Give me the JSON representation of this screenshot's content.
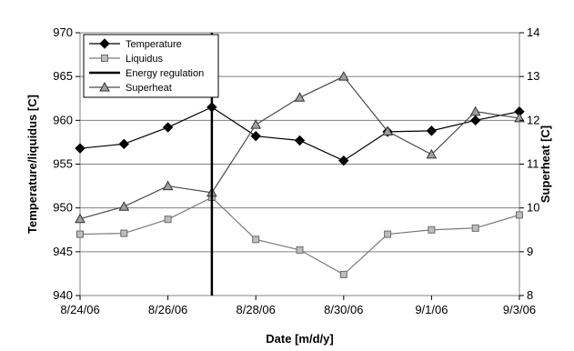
{
  "chart_data": {
    "type": "line",
    "x_dates": [
      "8/24/06",
      "8/25/06",
      "8/26/06",
      "8/27/06",
      "8/28/06",
      "8/29/06",
      "8/30/06",
      "8/31/06",
      "9/1/06",
      "9/2/06",
      "9/3/06"
    ],
    "x_ticks": [
      "8/24/06",
      "8/26/06",
      "8/28/06",
      "8/30/06",
      "9/1/06",
      "9/3/06"
    ],
    "xlabel": "Date [m/d/y]",
    "ylabel_left": "Temperature/liquidus [C]",
    "ylabel_right": "Superheat [C]",
    "ylim_left": [
      940,
      970
    ],
    "yticks_left": [
      "940",
      "945",
      "950",
      "955",
      "960",
      "965",
      "970"
    ],
    "ylim_right": [
      8,
      14
    ],
    "yticks_right": [
      "8",
      "9",
      "10",
      "11",
      "12",
      "13",
      "14"
    ],
    "grid": "horizontal",
    "legend_position": "top-left",
    "series": [
      {
        "name": "Temperature",
        "axis": "left",
        "marker": "diamond",
        "color": "#000000",
        "points": [
          {
            "x": "8/24/06",
            "y": 956.8
          },
          {
            "x": "8/25/06",
            "y": 957.3
          },
          {
            "x": "8/26/06",
            "y": 959.2
          },
          {
            "x": "8/27/06",
            "y": 961.5
          },
          {
            "x": "8/28/06",
            "y": 958.2
          },
          {
            "x": "8/29/06",
            "y": 957.7
          },
          {
            "x": "8/30/06",
            "y": 955.4
          },
          {
            "x": "8/31/06",
            "y": 958.7
          },
          {
            "x": "9/1/06",
            "y": 958.8
          },
          {
            "x": "9/2/06",
            "y": 960.0
          },
          {
            "x": "9/3/06",
            "y": 961.0
          }
        ]
      },
      {
        "name": "Liquidus",
        "axis": "left",
        "marker": "square",
        "color": "#7a7a7a",
        "points": [
          {
            "x": "8/24/06",
            "y": 947.0
          },
          {
            "x": "8/25/06",
            "y": 947.1
          },
          {
            "x": "8/26/06",
            "y": 948.7
          },
          {
            "x": "8/27/06",
            "y": 951.2
          },
          {
            "x": "8/28/06",
            "y": 946.4
          },
          {
            "x": "8/29/06",
            "y": 945.2
          },
          {
            "x": "8/30/06",
            "y": 942.4
          },
          {
            "x": "8/31/06",
            "y": 947.0
          },
          {
            "x": "9/1/06",
            "y": 947.5
          },
          {
            "x": "9/2/06",
            "y": 947.7
          },
          {
            "x": "9/3/06",
            "y": 949.2
          }
        ]
      },
      {
        "name": "Superheat",
        "axis": "right",
        "marker": "triangle",
        "color": "#4a4a4a",
        "points": [
          {
            "x": "8/24/06",
            "y": 9.75
          },
          {
            "x": "8/25/06",
            "y": 10.03
          },
          {
            "x": "8/26/06",
            "y": 10.5
          },
          {
            "x": "8/27/06",
            "y": 10.35
          },
          {
            "x": "8/28/06",
            "y": 11.9
          },
          {
            "x": "8/29/06",
            "y": 12.52
          },
          {
            "x": "8/30/06",
            "y": 13.0
          },
          {
            "x": "8/31/06",
            "y": 11.75
          },
          {
            "x": "9/1/06",
            "y": 11.22
          },
          {
            "x": "9/2/06",
            "y": 12.2
          },
          {
            "x": "9/3/06",
            "y": 12.05
          }
        ]
      }
    ],
    "energy_regulation": {
      "name": "Energy regulation",
      "x": "8/27/06"
    }
  }
}
